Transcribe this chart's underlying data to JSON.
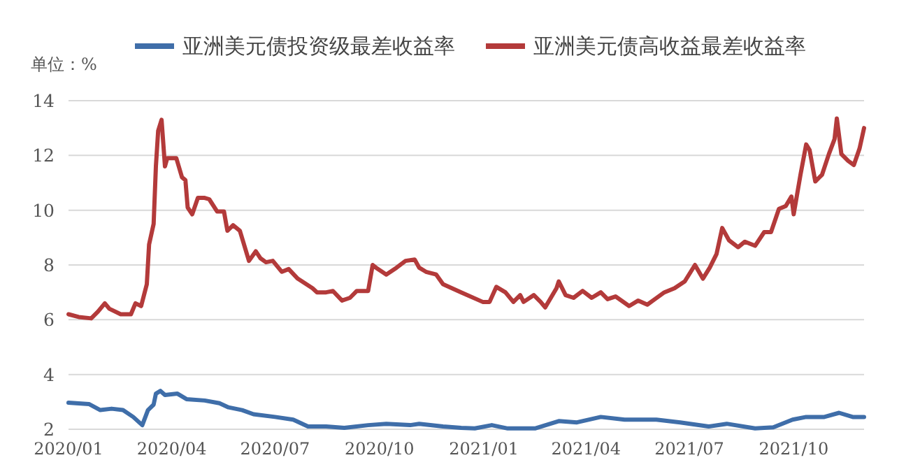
{
  "chart_data": {
    "type": "line",
    "ylabel": "单位：%",
    "legend": "top",
    "grid": "y",
    "xlim": [
      "2020-01-01",
      "2021-12-02"
    ],
    "ylim": [
      2,
      14
    ],
    "yticks": [
      2,
      4,
      6,
      8,
      10,
      12,
      14
    ],
    "xticks": [
      {
        "value": "2020-01-01",
        "label": "2020/01"
      },
      {
        "value": "2020-04-01",
        "label": "2020/04"
      },
      {
        "value": "2020-07-01",
        "label": "2020/07"
      },
      {
        "value": "2020-10-01",
        "label": "2020/10"
      },
      {
        "value": "2021-01-01",
        "label": "2021/01"
      },
      {
        "value": "2021-04-01",
        "label": "2021/04"
      },
      {
        "value": "2021-07-01",
        "label": "2021/07"
      },
      {
        "value": "2021-10-01",
        "label": "2021/10"
      }
    ],
    "series": [
      {
        "name": "亚洲美元债投资级最差收益率",
        "color": "#3f6ea9",
        "x": [
          "2020-01-01",
          "2020-01-19",
          "2020-01-29",
          "2020-02-08",
          "2020-02-18",
          "2020-02-27",
          "2020-03-06",
          "2020-03-11",
          "2020-03-16",
          "2020-03-18",
          "2020-03-22",
          "2020-03-26",
          "2020-04-06",
          "2020-04-14",
          "2020-04-30",
          "2020-05-13",
          "2020-05-21",
          "2020-06-02",
          "2020-06-12",
          "2020-07-01",
          "2020-07-17",
          "2020-07-30",
          "2020-08-15",
          "2020-08-31",
          "2020-09-21",
          "2020-10-07",
          "2020-10-28",
          "2020-11-05",
          "2020-11-26",
          "2020-12-12",
          "2020-12-24",
          "2021-01-08",
          "2021-01-22",
          "2021-02-15",
          "2021-03-08",
          "2021-03-24",
          "2021-04-14",
          "2021-05-05",
          "2021-06-02",
          "2021-06-23",
          "2021-07-18",
          "2021-08-03",
          "2021-08-28",
          "2021-09-13",
          "2021-09-30",
          "2021-10-12",
          "2021-10-28",
          "2021-11-10",
          "2021-11-22",
          "2021-12-02"
        ],
        "values": [
          2.97,
          2.92,
          2.7,
          2.75,
          2.7,
          2.45,
          2.15,
          2.7,
          2.9,
          3.3,
          3.4,
          3.25,
          3.3,
          3.1,
          3.05,
          2.95,
          2.8,
          2.7,
          2.55,
          2.45,
          2.35,
          2.1,
          2.1,
          2.05,
          2.15,
          2.2,
          2.15,
          2.2,
          2.1,
          2.05,
          2.03,
          2.15,
          2.03,
          2.03,
          2.3,
          2.25,
          2.45,
          2.35,
          2.35,
          2.25,
          2.1,
          2.2,
          2.03,
          2.07,
          2.35,
          2.45,
          2.45,
          2.6,
          2.45,
          2.45
        ]
      },
      {
        "name": "亚洲美元债高收益最差收益率",
        "color": "#b33a3a",
        "x": [
          "2020-01-01",
          "2020-01-10",
          "2020-01-21",
          "2020-01-27",
          "2020-02-02",
          "2020-02-06",
          "2020-02-16",
          "2020-02-25",
          "2020-02-29",
          "2020-03-05",
          "2020-03-10",
          "2020-03-12",
          "2020-03-16",
          "2020-03-18",
          "2020-03-20",
          "2020-03-23",
          "2020-03-26",
          "2020-03-28",
          "2020-04-05",
          "2020-04-10",
          "2020-04-13",
          "2020-04-15",
          "2020-04-19",
          "2020-04-24",
          "2020-04-30",
          "2020-05-04",
          "2020-05-11",
          "2020-05-17",
          "2020-05-20",
          "2020-05-25",
          "2020-05-31",
          "2020-06-08",
          "2020-06-14",
          "2020-06-18",
          "2020-06-23",
          "2020-06-29",
          "2020-07-07",
          "2020-07-13",
          "2020-07-21",
          "2020-08-03",
          "2020-08-07",
          "2020-08-15",
          "2020-08-21",
          "2020-08-29",
          "2020-09-05",
          "2020-09-11",
          "2020-09-21",
          "2020-09-25",
          "2020-09-28",
          "2020-10-07",
          "2020-10-16",
          "2020-10-24",
          "2020-11-01",
          "2020-11-05",
          "2020-11-11",
          "2020-11-20",
          "2020-11-26",
          "2020-12-12",
          "2020-12-31",
          "2021-01-06",
          "2021-01-12",
          "2021-01-20",
          "2021-01-27",
          "2021-02-02",
          "2021-02-05",
          "2021-02-14",
          "2021-02-20",
          "2021-02-24",
          "2021-03-06",
          "2021-03-08",
          "2021-03-14",
          "2021-03-21",
          "2021-03-29",
          "2021-04-06",
          "2021-04-14",
          "2021-04-20",
          "2021-04-27",
          "2021-05-09",
          "2021-05-17",
          "2021-05-25",
          "2021-05-30",
          "2021-06-09",
          "2021-06-18",
          "2021-06-27",
          "2021-07-06",
          "2021-07-13",
          "2021-07-19",
          "2021-07-25",
          "2021-07-30",
          "2021-08-05",
          "2021-08-13",
          "2021-08-19",
          "2021-08-28",
          "2021-09-05",
          "2021-09-11",
          "2021-09-18",
          "2021-09-24",
          "2021-09-29",
          "2021-10-01",
          "2021-10-07",
          "2021-10-12",
          "2021-10-15",
          "2021-10-20",
          "2021-10-26",
          "2021-11-01",
          "2021-11-06",
          "2021-11-08",
          "2021-11-12",
          "2021-11-18",
          "2021-11-23",
          "2021-11-28",
          "2021-12-02"
        ],
        "values": [
          6.2,
          6.1,
          6.05,
          6.3,
          6.6,
          6.4,
          6.2,
          6.2,
          6.6,
          6.5,
          7.3,
          8.75,
          9.5,
          11.6,
          12.9,
          13.3,
          11.6,
          11.9,
          11.9,
          11.2,
          11.1,
          10.1,
          9.85,
          10.45,
          10.45,
          10.4,
          9.95,
          9.95,
          9.25,
          9.45,
          9.25,
          8.15,
          8.5,
          8.25,
          8.1,
          8.15,
          7.75,
          7.85,
          7.5,
          7.15,
          7.0,
          7.0,
          7.05,
          6.7,
          6.8,
          7.05,
          7.05,
          8.0,
          7.9,
          7.65,
          7.9,
          8.15,
          8.2,
          7.9,
          7.75,
          7.65,
          7.3,
          7.0,
          6.65,
          6.65,
          7.2,
          7.0,
          6.65,
          6.9,
          6.65,
          6.9,
          6.65,
          6.45,
          7.15,
          7.4,
          6.9,
          6.8,
          7.05,
          6.8,
          7.0,
          6.75,
          6.85,
          6.5,
          6.7,
          6.55,
          6.7,
          7.0,
          7.15,
          7.4,
          8.0,
          7.5,
          7.9,
          8.4,
          9.35,
          8.9,
          8.65,
          8.85,
          8.7,
          9.2,
          9.2,
          10.05,
          10.15,
          10.5,
          9.85,
          11.3,
          12.4,
          12.2,
          11.05,
          11.3,
          12.05,
          12.6,
          13.35,
          12.05,
          11.8,
          11.65,
          12.25,
          13.0
        ]
      }
    ]
  }
}
